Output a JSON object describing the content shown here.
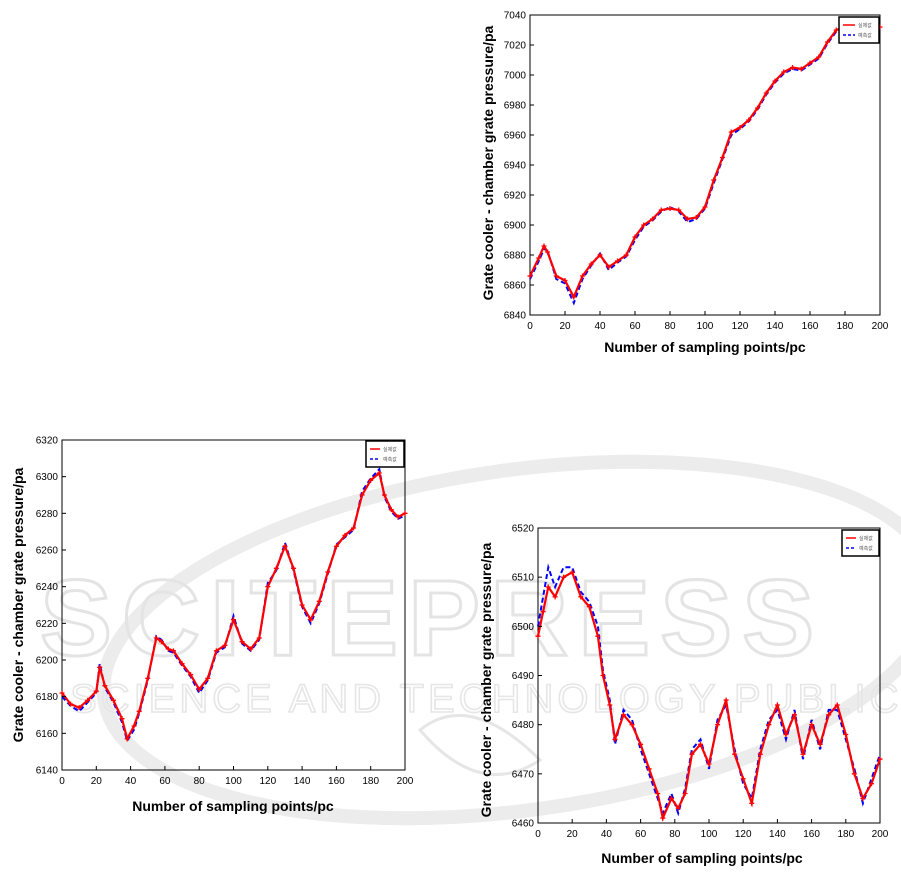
{
  "chart_data": [
    {
      "id": "top-right",
      "type": "line",
      "xlabel": "Number of sampling points/pc",
      "ylabel": "Grate cooler - chamber grate pressure/pa",
      "xlim": [
        0,
        200
      ],
      "ylim": [
        6840,
        7040
      ],
      "xticks": [
        0,
        20,
        40,
        60,
        80,
        100,
        120,
        140,
        160,
        180,
        200
      ],
      "yticks": [
        6840,
        6860,
        6880,
        6900,
        6920,
        6940,
        6960,
        6980,
        7000,
        7020,
        7040
      ],
      "legend": {
        "position": "top-right",
        "entries": [
          "실제값",
          "예측값"
        ]
      },
      "series": [
        {
          "name": "실제값",
          "color": "#ff0000",
          "style": "solid-marker",
          "x": [
            0,
            5,
            8,
            10,
            15,
            20,
            25,
            30,
            35,
            40,
            45,
            50,
            55,
            60,
            65,
            70,
            75,
            80,
            85,
            90,
            95,
            100,
            105,
            110,
            115,
            120,
            125,
            130,
            135,
            140,
            145,
            150,
            155,
            160,
            165,
            170,
            175,
            180,
            185,
            190,
            195,
            200
          ],
          "values": [
            6866,
            6878,
            6886,
            6882,
            6866,
            6863,
            6852,
            6866,
            6874,
            6880,
            6872,
            6876,
            6880,
            6892,
            6900,
            6904,
            6910,
            6911,
            6910,
            6904,
            6905,
            6912,
            6930,
            6945,
            6962,
            6965,
            6970,
            6978,
            6988,
            6996,
            7002,
            7005,
            7004,
            7008,
            7012,
            7022,
            7030,
            7032,
            7033,
            7035,
            7034,
            7032
          ]
        },
        {
          "name": "예측값",
          "color": "#0000ff",
          "style": "dashed",
          "x": [
            0,
            5,
            8,
            10,
            15,
            20,
            25,
            30,
            35,
            40,
            45,
            50,
            55,
            60,
            65,
            70,
            75,
            80,
            85,
            90,
            95,
            100,
            105,
            110,
            115,
            120,
            125,
            130,
            135,
            140,
            145,
            150,
            155,
            160,
            165,
            170,
            175,
            180,
            185,
            190,
            195,
            200
          ],
          "values": [
            6864,
            6876,
            6884,
            6883,
            6864,
            6861,
            6848,
            6864,
            6873,
            6881,
            6870,
            6875,
            6879,
            6890,
            6899,
            6903,
            6909,
            6912,
            6909,
            6902,
            6904,
            6911,
            6928,
            6944,
            6960,
            6964,
            6969,
            6977,
            6987,
            6995,
            7001,
            7004,
            7003,
            7007,
            7011,
            7021,
            7029,
            7031,
            7034,
            7036,
            7033,
            7031
          ]
        }
      ]
    },
    {
      "id": "bottom-left",
      "type": "line",
      "xlabel": "Number of sampling points/pc",
      "ylabel": "Grate cooler - chamber grate pressure/pa",
      "xlim": [
        0,
        200
      ],
      "ylim": [
        6140,
        6320
      ],
      "xticks": [
        0,
        20,
        40,
        60,
        80,
        100,
        120,
        140,
        160,
        180,
        200
      ],
      "yticks": [
        6140,
        6160,
        6180,
        6200,
        6220,
        6240,
        6260,
        6280,
        6300,
        6320
      ],
      "legend": {
        "position": "top-right",
        "entries": [
          "실제값",
          "예측값"
        ]
      },
      "series": [
        {
          "name": "실제값",
          "color": "#ff0000",
          "style": "solid-marker",
          "x": [
            0,
            5,
            10,
            15,
            20,
            22,
            25,
            30,
            35,
            38,
            42,
            45,
            50,
            55,
            58,
            62,
            65,
            70,
            75,
            80,
            85,
            90,
            95,
            100,
            105,
            110,
            115,
            120,
            125,
            130,
            135,
            140,
            145,
            150,
            155,
            160,
            165,
            170,
            175,
            180,
            185,
            188,
            192,
            196,
            200
          ],
          "values": [
            6182,
            6176,
            6174,
            6178,
            6183,
            6196,
            6186,
            6178,
            6168,
            6157,
            6164,
            6172,
            6190,
            6212,
            6210,
            6206,
            6205,
            6198,
            6192,
            6184,
            6190,
            6205,
            6208,
            6222,
            6210,
            6206,
            6212,
            6240,
            6250,
            6262,
            6250,
            6230,
            6222,
            6232,
            6248,
            6262,
            6268,
            6272,
            6290,
            6298,
            6302,
            6290,
            6282,
            6278,
            6280
          ]
        },
        {
          "name": "예측값",
          "color": "#0000ff",
          "style": "dashed",
          "x": [
            0,
            5,
            10,
            15,
            20,
            22,
            25,
            30,
            35,
            38,
            42,
            45,
            50,
            55,
            58,
            62,
            65,
            70,
            75,
            80,
            85,
            90,
            95,
            100,
            105,
            110,
            115,
            120,
            125,
            130,
            135,
            140,
            145,
            150,
            155,
            160,
            165,
            170,
            175,
            180,
            185,
            188,
            192,
            196,
            200
          ],
          "values": [
            6180,
            6175,
            6172,
            6177,
            6182,
            6198,
            6185,
            6177,
            6166,
            6156,
            6162,
            6171,
            6189,
            6213,
            6211,
            6205,
            6204,
            6197,
            6191,
            6182,
            6189,
            6204,
            6207,
            6224,
            6209,
            6205,
            6211,
            6242,
            6249,
            6264,
            6249,
            6229,
            6220,
            6231,
            6247,
            6263,
            6267,
            6271,
            6292,
            6299,
            6304,
            6289,
            6281,
            6277,
            6279
          ]
        }
      ]
    },
    {
      "id": "bottom-right",
      "type": "line",
      "xlabel": "Number of sampling points/pc",
      "ylabel": "Grate cooler - chamber grate pressure/pa",
      "xlim": [
        0,
        200
      ],
      "ylim": [
        6460,
        6520
      ],
      "xticks": [
        0,
        20,
        40,
        60,
        80,
        100,
        120,
        140,
        160,
        180,
        200
      ],
      "yticks": [
        6460,
        6470,
        6480,
        6490,
        6500,
        6510,
        6520
      ],
      "legend": {
        "position": "top-right",
        "entries": [
          "실제값",
          "예측값"
        ]
      },
      "series": [
        {
          "name": "실제값",
          "color": "#ff0000",
          "style": "solid-marker",
          "x": [
            0,
            3,
            6,
            10,
            15,
            20,
            25,
            30,
            35,
            38,
            42,
            45,
            50,
            55,
            60,
            65,
            70,
            73,
            78,
            82,
            86,
            90,
            95,
            100,
            105,
            110,
            115,
            120,
            125,
            130,
            135,
            140,
            145,
            150,
            155,
            160,
            165,
            170,
            175,
            180,
            185,
            190,
            195,
            200
          ],
          "values": [
            6498,
            6503,
            6508,
            6506,
            6510,
            6511,
            6506,
            6504,
            6498,
            6490,
            6484,
            6477,
            6482,
            6480,
            6476,
            6471,
            6466,
            6461,
            6465,
            6463,
            6466,
            6474,
            6476,
            6472,
            6480,
            6485,
            6474,
            6469,
            6464,
            6474,
            6480,
            6484,
            6478,
            6482,
            6474,
            6480,
            6476,
            6482,
            6484,
            6478,
            6470,
            6465,
            6468,
            6473
          ]
        },
        {
          "name": "예측값",
          "color": "#0000ff",
          "style": "dashed",
          "x": [
            0,
            3,
            6,
            10,
            15,
            20,
            25,
            30,
            35,
            38,
            42,
            45,
            50,
            55,
            60,
            65,
            70,
            73,
            78,
            82,
            86,
            90,
            95,
            100,
            105,
            110,
            115,
            120,
            125,
            130,
            135,
            140,
            145,
            150,
            155,
            160,
            165,
            170,
            175,
            180,
            185,
            190,
            195,
            200
          ],
          "values": [
            6500,
            6506,
            6512,
            6508,
            6512,
            6512,
            6507,
            6505,
            6500,
            6491,
            6485,
            6476,
            6483,
            6481,
            6475,
            6470,
            6465,
            6462,
            6466,
            6462,
            6467,
            6475,
            6477,
            6471,
            6481,
            6484,
            6475,
            6468,
            6465,
            6475,
            6481,
            6483,
            6477,
            6483,
            6473,
            6481,
            6475,
            6483,
            6483,
            6477,
            6471,
            6464,
            6469,
            6474
          ]
        }
      ]
    }
  ]
}
